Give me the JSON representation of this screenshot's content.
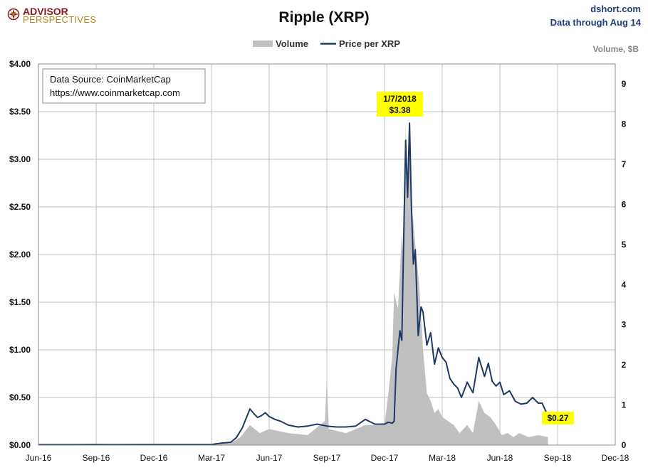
{
  "branding": {
    "logo_top": "ADVISOR",
    "logo_bottom": "PERSPECTIVES",
    "source_site": "dshort.com",
    "data_through": "Data through Aug 14"
  },
  "note": {
    "line1": "Data Source: CoinMarketCap",
    "line2": "https://www.coinmarketcap.com"
  },
  "callouts": {
    "peak_date": "1/7/2018",
    "peak_value": "$3.38",
    "last_value": "$0.27"
  },
  "colors": {
    "price_line": "#1f3864",
    "volume_fill": "#c0c0c0",
    "gridline": "#bfbfbf",
    "callout_bg": "#ffff00",
    "logo_red": "#8b1a1a",
    "logo_gold": "#b08a1e"
  },
  "chart_data": {
    "type": "line",
    "title": "Ripple (XRP)",
    "xlabel": "",
    "ylabel": "",
    "y2label": "Volume, $B",
    "legend": [
      "Volume",
      "Price per XRP"
    ],
    "legend_position": "top-center",
    "grid": true,
    "x_range": [
      0,
      30
    ],
    "x_unit": "months since Jun-16",
    "ylim": [
      0,
      4.0
    ],
    "y2lim": [
      0,
      9.5
    ],
    "x_tick_values": [
      0,
      3,
      6,
      9,
      12,
      15,
      18,
      21,
      24,
      27,
      30
    ],
    "x_tick_labels": [
      "Jun-16",
      "Sep-16",
      "Dec-16",
      "Mar-17",
      "Jun-17",
      "Sep-17",
      "Dec-17",
      "Mar-18",
      "Jun-18",
      "Sep-18",
      "Dec-18"
    ],
    "y_tick_values": [
      0,
      0.5,
      1.0,
      1.5,
      2.0,
      2.5,
      3.0,
      3.5,
      4.0
    ],
    "y_tick_labels": [
      "$0.00",
      "$0.50",
      "$1.00",
      "$1.50",
      "$2.00",
      "$2.50",
      "$3.00",
      "$3.50",
      "$4.00"
    ],
    "y2_tick_values": [
      0,
      1,
      2,
      3,
      4,
      5,
      6,
      7,
      8,
      9
    ],
    "y2_tick_labels": [
      "0",
      "1",
      "2",
      "3",
      "4",
      "5",
      "6",
      "7",
      "8",
      "9"
    ],
    "series": [
      {
        "name": "Price per XRP",
        "axis": "left",
        "x": [
          0,
          1,
          2,
          3,
          4,
          5,
          6,
          7,
          8,
          8.5,
          9,
          9.5,
          10,
          10.3,
          10.6,
          10.8,
          11.0,
          11.2,
          11.4,
          11.6,
          11.8,
          12.0,
          12.3,
          12.6,
          13.0,
          13.5,
          14.0,
          14.5,
          15.0,
          15.5,
          16.0,
          16.5,
          17.0,
          17.5,
          18.0,
          18.2,
          18.4,
          18.5,
          18.6,
          18.8,
          18.9,
          19.0,
          19.1,
          19.2,
          19.3,
          19.4,
          19.5,
          19.6,
          19.75,
          19.9,
          20.0,
          20.2,
          20.4,
          20.6,
          20.8,
          21.0,
          21.2,
          21.4,
          21.6,
          21.8,
          22.0,
          22.3,
          22.6,
          22.9,
          23.2,
          23.4,
          23.6,
          23.8,
          24.0,
          24.2,
          24.5,
          24.8,
          25.1,
          25.4,
          25.7,
          26.0,
          26.2,
          26.4,
          26.5
        ],
        "values": [
          0.006,
          0.006,
          0.006,
          0.007,
          0.006,
          0.0065,
          0.007,
          0.007,
          0.007,
          0.007,
          0.007,
          0.02,
          0.03,
          0.08,
          0.18,
          0.28,
          0.38,
          0.33,
          0.29,
          0.31,
          0.34,
          0.3,
          0.27,
          0.25,
          0.21,
          0.19,
          0.2,
          0.22,
          0.2,
          0.19,
          0.19,
          0.2,
          0.27,
          0.22,
          0.22,
          0.24,
          0.23,
          0.25,
          0.8,
          1.2,
          1.1,
          2.2,
          3.2,
          2.6,
          3.38,
          2.5,
          1.9,
          2.05,
          1.15,
          1.45,
          1.4,
          1.05,
          1.18,
          0.85,
          1.02,
          0.92,
          0.87,
          0.7,
          0.64,
          0.6,
          0.5,
          0.66,
          0.55,
          0.92,
          0.72,
          0.86,
          0.67,
          0.62,
          0.66,
          0.53,
          0.57,
          0.46,
          0.43,
          0.44,
          0.5,
          0.44,
          0.44,
          0.35,
          0.27
        ]
      },
      {
        "name": "Volume",
        "axis": "right",
        "x": [
          0,
          8,
          10,
          10.5,
          11,
          11.5,
          12,
          13,
          14,
          14.9,
          15.0,
          15.1,
          16,
          17,
          18,
          18.2,
          18.4,
          18.5,
          18.7,
          18.9,
          19.0,
          19.1,
          19.2,
          19.3,
          19.4,
          19.5,
          19.6,
          19.8,
          20.0,
          20.2,
          20.4,
          20.6,
          20.8,
          21.0,
          21.3,
          21.6,
          21.9,
          22.3,
          22.6,
          22.9,
          23.2,
          23.5,
          23.8,
          24.1,
          24.4,
          24.7,
          25.0,
          25.5,
          26.0,
          26.5
        ],
        "values": [
          0.0,
          0.0,
          0.05,
          0.2,
          0.5,
          0.3,
          0.4,
          0.3,
          0.25,
          0.6,
          1.7,
          0.4,
          0.3,
          0.5,
          0.5,
          1.3,
          2.2,
          3.8,
          3.4,
          5.3,
          4.4,
          8.0,
          6.3,
          7.8,
          5.9,
          5.6,
          5.0,
          4.0,
          2.4,
          1.3,
          1.1,
          0.8,
          0.9,
          0.7,
          0.6,
          0.5,
          0.3,
          0.5,
          0.3,
          1.1,
          0.8,
          0.7,
          0.5,
          0.25,
          0.3,
          0.2,
          0.3,
          0.2,
          0.25,
          0.2
        ]
      }
    ],
    "annotations": [
      {
        "x": 19.35,
        "y": 3.38,
        "label": "1/7/2018 $3.38"
      },
      {
        "x": 26.5,
        "y": 0.27,
        "label": "$0.27"
      }
    ]
  }
}
